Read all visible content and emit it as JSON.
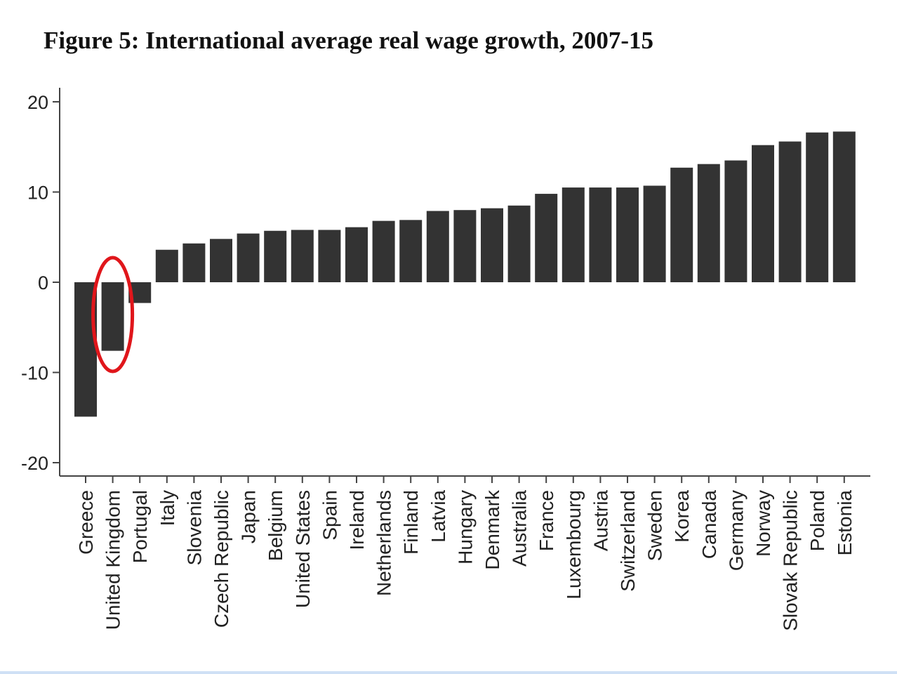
{
  "chart_data": {
    "type": "bar",
    "title": "Figure 5: International average real wage growth, 2007-15",
    "xlabel": "",
    "ylabel": "",
    "ylim": [
      -20,
      20
    ],
    "yticks": [
      20,
      10,
      0,
      -10,
      -20
    ],
    "grid": false,
    "bar_color": "#333333",
    "highlight": {
      "category": "United Kingdom",
      "shape": "ellipse",
      "color": "#e0161b"
    },
    "categories": [
      "Greece",
      "United Kingdom",
      "Portugal",
      "Italy",
      "Slovenia",
      "Czech Republic",
      "Japan",
      "Belgium",
      "United States",
      "Spain",
      "Ireland",
      "Netherlands",
      "Finland",
      "Latvia",
      "Hungary",
      "Denmark",
      "Australia",
      "France",
      "Luxembourg",
      "Austria",
      "Switzerland",
      "Sweden",
      "Korea",
      "Canada",
      "Germany",
      "Norway",
      "Slovak Republic",
      "Poland",
      "Estonia"
    ],
    "values": [
      -14.9,
      -7.6,
      -2.3,
      3.6,
      4.3,
      4.8,
      5.4,
      5.7,
      5.8,
      5.8,
      6.1,
      6.8,
      6.9,
      7.9,
      8.0,
      8.2,
      8.5,
      9.8,
      10.5,
      10.5,
      10.5,
      10.7,
      12.7,
      13.1,
      13.5,
      15.2,
      15.6,
      16.6,
      16.7
    ]
  }
}
